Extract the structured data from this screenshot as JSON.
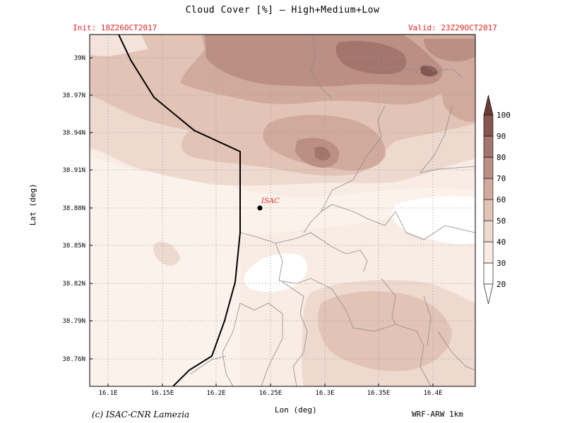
{
  "title": "Cloud Cover [%] — High+Medium+Low",
  "init": "Init: 18Z26OCT2017",
  "valid": "Valid: 23Z29OCT2017",
  "axes": {
    "xlabel": "Lon (deg)",
    "ylabel": "Lat (deg)",
    "x_ticks": [
      "16.1E",
      "16.15E",
      "16.2E",
      "16.25E",
      "16.3E",
      "16.35E",
      "16.4E"
    ],
    "y_ticks": [
      "39N",
      "38.97N",
      "38.94N",
      "38.91N",
      "38.88N",
      "38.85N",
      "38.82N",
      "38.79N",
      "38.76N"
    ]
  },
  "colorbar": {
    "levels": [
      "20",
      "30",
      "40",
      "50",
      "60",
      "70",
      "80",
      "90",
      "100"
    ],
    "colors": [
      "#ffffff",
      "#f8ece4",
      "#eed9cf",
      "#e2c3b6",
      "#d0aa9d",
      "#bb8f84",
      "#a4756c",
      "#865650",
      "#6a3b37"
    ]
  },
  "marker": {
    "label": "ISAC"
  },
  "footer": {
    "credit": "(c) ISAC-CNR Lamezia",
    "model": "WRF-ARW 1km"
  }
}
